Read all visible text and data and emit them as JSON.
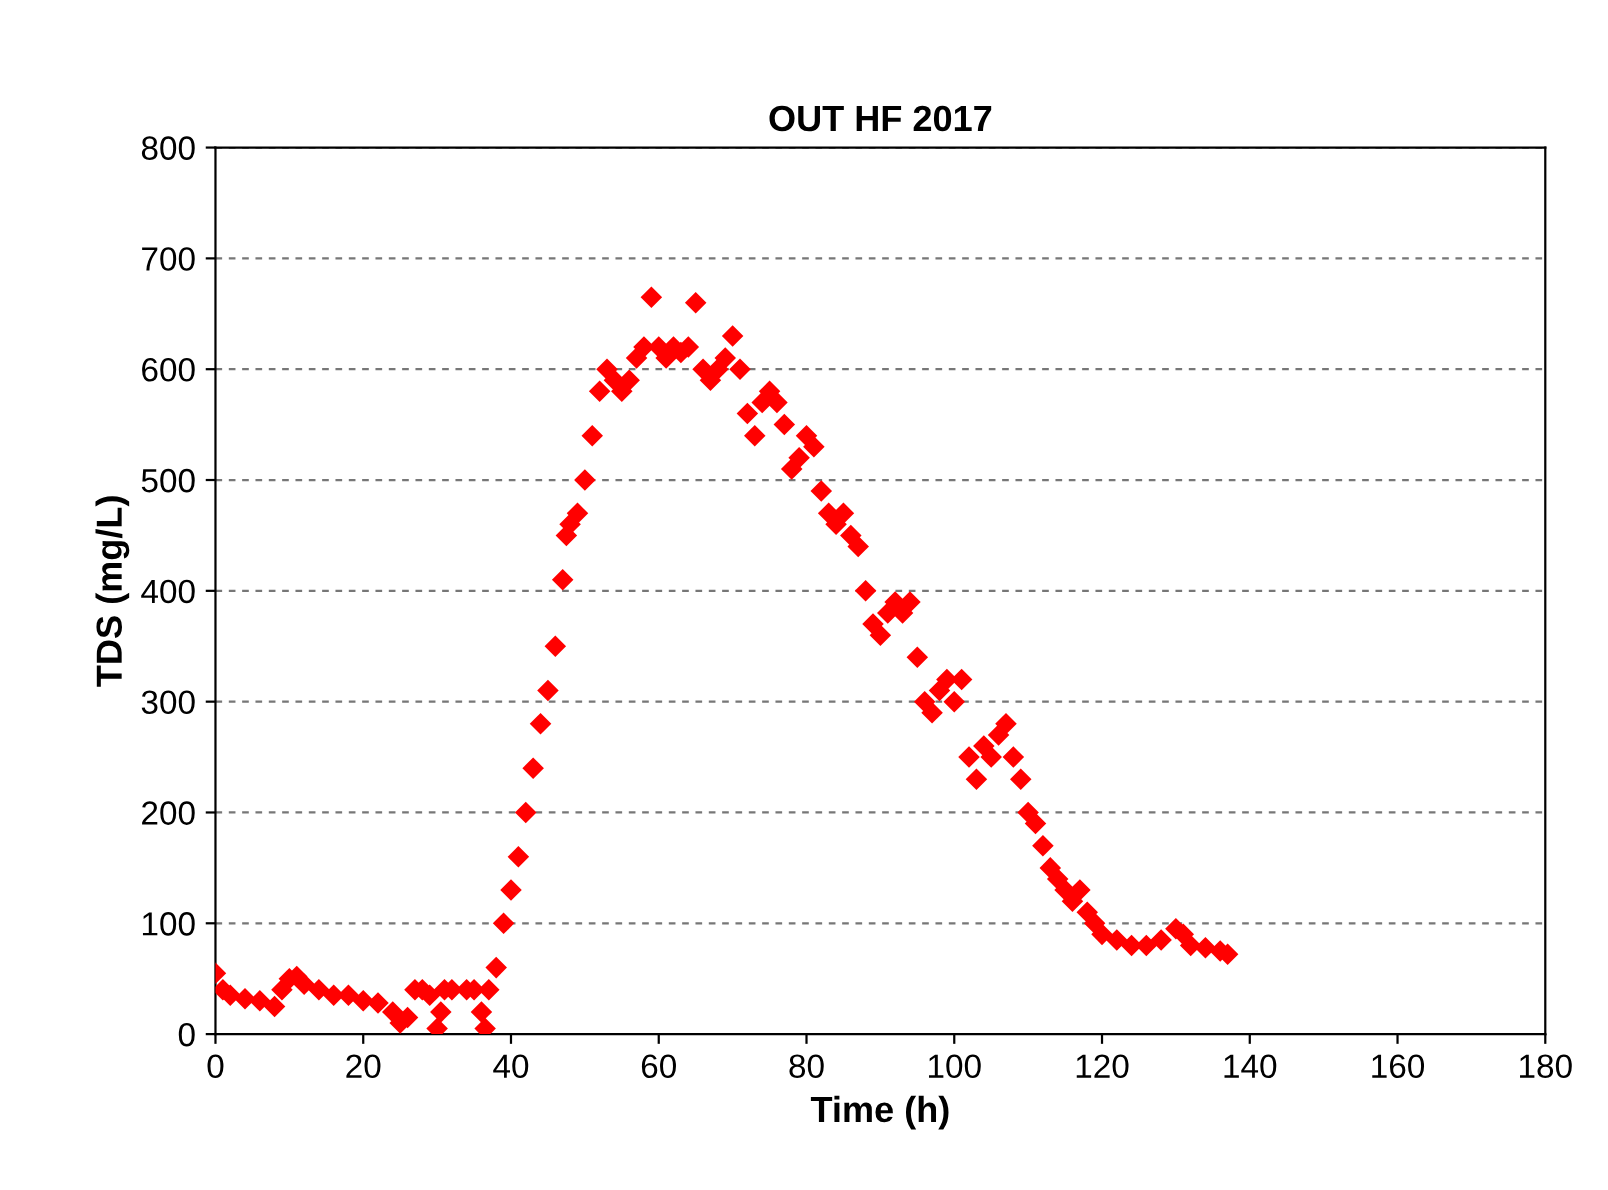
{
  "chart_data": {
    "type": "scatter",
    "title": "OUT HF 2017",
    "xlabel": "Time (h)",
    "ylabel": "TDS (mg/L)",
    "xlim": [
      0,
      180
    ],
    "xticks": [
      0,
      20,
      40,
      60,
      80,
      100,
      120,
      140,
      160,
      180
    ],
    "ylim": [
      0,
      800
    ],
    "yticks": [
      0,
      100,
      200,
      300,
      400,
      500,
      600,
      700,
      800
    ],
    "grid": "y",
    "marker": "diamond",
    "series": [
      {
        "color": "#ff0000",
        "x": [
          0,
          1,
          2,
          4,
          6,
          8,
          9,
          10,
          11,
          12,
          14,
          16,
          18,
          20,
          22,
          24,
          25,
          26,
          27,
          28,
          29,
          30,
          30.5,
          31,
          32,
          34,
          35,
          36,
          36.5,
          37,
          38,
          39,
          40,
          41,
          42,
          43,
          44,
          45,
          46,
          47,
          47.5,
          48,
          49,
          50,
          51,
          52,
          53,
          54,
          55,
          56,
          57,
          58,
          59,
          60,
          61,
          62,
          63,
          64,
          65,
          66,
          67,
          68,
          69,
          70,
          71,
          72,
          73,
          74,
          75,
          76,
          77,
          78,
          79,
          80,
          81,
          82,
          83,
          84,
          85,
          86,
          87,
          88,
          89,
          90,
          91,
          92,
          93,
          94,
          95,
          96,
          97,
          98,
          99,
          100,
          101,
          102,
          103,
          104,
          105,
          106,
          107,
          108,
          109,
          110,
          111,
          112,
          113,
          114,
          115,
          116,
          117,
          118,
          119,
          120,
          122,
          124,
          126,
          128,
          130,
          131,
          132,
          134,
          136,
          137
        ],
        "values": [
          55,
          40,
          35,
          32,
          30,
          25,
          40,
          50,
          52,
          45,
          40,
          35,
          35,
          30,
          28,
          20,
          10,
          15,
          40,
          40,
          35,
          5,
          20,
          40,
          40,
          40,
          40,
          20,
          5,
          40,
          60,
          100,
          130,
          160,
          200,
          240,
          280,
          310,
          350,
          410,
          450,
          460,
          470,
          500,
          540,
          580,
          600,
          590,
          580,
          590,
          610,
          620,
          665,
          620,
          610,
          620,
          615,
          620,
          660,
          600,
          590,
          600,
          610,
          630,
          600,
          560,
          540,
          570,
          580,
          570,
          550,
          510,
          520,
          540,
          530,
          490,
          470,
          460,
          470,
          450,
          440,
          400,
          370,
          360,
          380,
          390,
          380,
          390,
          340,
          300,
          290,
          310,
          320,
          300,
          320,
          250,
          230,
          260,
          250,
          270,
          280,
          250,
          230,
          200,
          190,
          170,
          150,
          140,
          130,
          120,
          130,
          110,
          100,
          90,
          85,
          80,
          80,
          85,
          95,
          90,
          80,
          78,
          75,
          72
        ]
      }
    ]
  }
}
